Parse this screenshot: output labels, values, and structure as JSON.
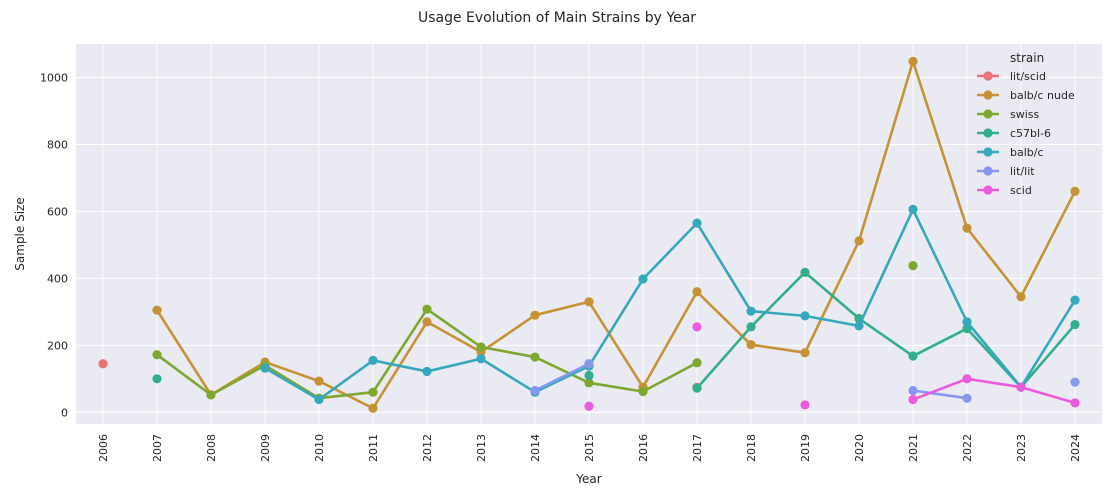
{
  "chart_data": {
    "type": "line",
    "title": "Usage Evolution of Main Strains by Year",
    "xlabel": "Year",
    "ylabel": "Sample Size",
    "x": [
      "2006",
      "2007",
      "2008",
      "2009",
      "2010",
      "2011",
      "2012",
      "2013",
      "2014",
      "2015",
      "2016",
      "2017",
      "2018",
      "2019",
      "2020",
      "2021",
      "2022",
      "2023",
      "2024"
    ],
    "ylim": [
      -35,
      1100
    ],
    "yticks": [
      0,
      200,
      400,
      600,
      800,
      1000
    ],
    "grid": true,
    "legend_title": "strain",
    "legend_position": "top-right",
    "series": [
      {
        "name": "lit/scid",
        "color": "#f0707a",
        "values": [
          145,
          null,
          null,
          null,
          null,
          null,
          null,
          null,
          null,
          null,
          null,
          75,
          null,
          null,
          null,
          null,
          null,
          null,
          null
        ]
      },
      {
        "name": "balb/c nude",
        "color": "#c59235",
        "values": [
          null,
          305,
          52,
          150,
          93,
          12,
          270,
          180,
          290,
          330,
          75,
          360,
          202,
          178,
          512,
          1048,
          550,
          345,
          660
        ]
      },
      {
        "name": "swiss",
        "color": "#7da72e",
        "values": [
          null,
          172,
          52,
          140,
          42,
          60,
          308,
          195,
          165,
          88,
          62,
          148,
          null,
          null,
          null,
          438,
          null,
          null,
          null
        ]
      },
      {
        "name": "c57bl-6",
        "color": "#32ae8a",
        "values": [
          null,
          100,
          null,
          null,
          null,
          null,
          null,
          null,
          null,
          110,
          null,
          72,
          255,
          418,
          280,
          168,
          250,
          75,
          262
        ]
      },
      {
        "name": "balb/c",
        "color": "#36a8bb",
        "values": [
          null,
          null,
          null,
          132,
          38,
          155,
          122,
          160,
          60,
          138,
          398,
          565,
          302,
          288,
          258,
          606,
          270,
          75,
          335
        ]
      },
      {
        "name": "lit/lit",
        "color": "#8897ee",
        "values": [
          null,
          null,
          null,
          null,
          null,
          null,
          null,
          null,
          65,
          145,
          null,
          null,
          null,
          null,
          null,
          65,
          42,
          null,
          90
        ]
      },
      {
        "name": "scid",
        "color": "#ea5bdf",
        "values": [
          null,
          null,
          null,
          null,
          null,
          null,
          null,
          null,
          null,
          18,
          null,
          255,
          null,
          22,
          null,
          38,
          100,
          75,
          28
        ]
      }
    ]
  }
}
